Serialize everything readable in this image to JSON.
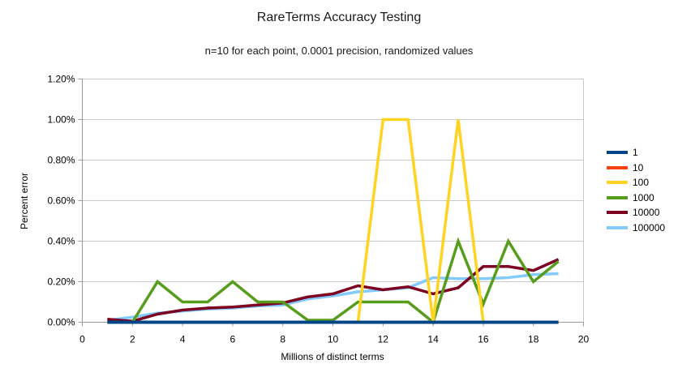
{
  "chart_data": {
    "type": "line",
    "title": "RareTerms Accuracy Testing",
    "subtitle": "n=10 for each point, 0.0001 precision, randomized values",
    "xlabel": "Millions of distinct terms",
    "ylabel": "Percent error",
    "xlim": [
      0,
      20
    ],
    "ylim": [
      0,
      1.2
    ],
    "x_tick_labels": [
      "0",
      "2",
      "4",
      "6",
      "8",
      "10",
      "12",
      "14",
      "16",
      "18",
      "20"
    ],
    "y_tick_labels": [
      "0.00%",
      "0.20%",
      "0.40%",
      "0.60%",
      "0.80%",
      "1.00%",
      "1.20%"
    ],
    "grid": true,
    "legend_position": "right",
    "x": [
      1,
      2,
      3,
      4,
      5,
      6,
      7,
      8,
      9,
      10,
      11,
      12,
      13,
      14,
      15,
      16,
      17,
      18,
      19
    ],
    "series": [
      {
        "name": "1",
        "color": "#004586",
        "values_percent": [
          0,
          0,
          0,
          0,
          0,
          0,
          0,
          0,
          0,
          0,
          0,
          0,
          0,
          0,
          0,
          0,
          0,
          0,
          0
        ]
      },
      {
        "name": "10",
        "color": "#ff420e",
        "values_percent": [
          0,
          0,
          0,
          0,
          0,
          0,
          0,
          0,
          0,
          0,
          0,
          0,
          0,
          0,
          0,
          0,
          0,
          0,
          0
        ]
      },
      {
        "name": "100",
        "color": "#ffd320",
        "values_percent": [
          0,
          0,
          0,
          0,
          0,
          0,
          0,
          0,
          0,
          0,
          0,
          1.0,
          1.0,
          0,
          1.0,
          0,
          0,
          0,
          0
        ]
      },
      {
        "name": "1000",
        "color": "#579d1c",
        "values_percent": [
          0,
          0,
          0.2,
          0.1,
          0.1,
          0.2,
          0.1,
          0.1,
          0.01,
          0.01,
          0.1,
          0.1,
          0.1,
          0,
          0.4,
          0.09,
          0.4,
          0.2,
          0.3
        ]
      },
      {
        "name": "10000",
        "color": "#7e0021",
        "values_percent": [
          0.015,
          0.005,
          0.04,
          0.06,
          0.07,
          0.075,
          0.085,
          0.095,
          0.125,
          0.14,
          0.18,
          0.16,
          0.175,
          0.14,
          0.17,
          0.275,
          0.275,
          0.255,
          0.31
        ]
      },
      {
        "name": "100000",
        "color": "#83caff",
        "values_percent": [
          0.01,
          0.025,
          0.045,
          0.055,
          0.065,
          0.07,
          0.08,
          0.085,
          0.115,
          0.13,
          0.15,
          0.16,
          0.17,
          0.22,
          0.215,
          0.215,
          0.22,
          0.235,
          0.24
        ]
      }
    ]
  }
}
